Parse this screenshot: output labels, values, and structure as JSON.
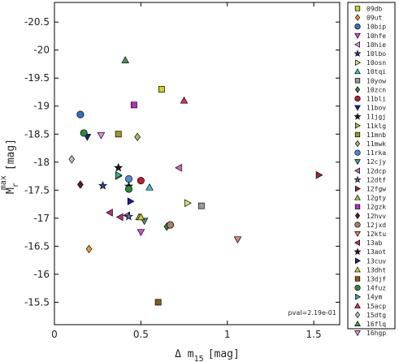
{
  "chart_data": {
    "type": "scatter",
    "xlabel": "Δ m15 [mag]",
    "xlabel_parts": {
      "main": "Δ m",
      "sub": "15",
      "unit": "[mag]"
    },
    "ylabel": "Mr max [mag]",
    "ylabel_parts": {
      "main": "M",
      "sub": "r",
      "sup": "max",
      "unit": "[mag]"
    },
    "xlim": [
      0,
      1.65
    ],
    "ylim": [
      -15.1,
      -20.85
    ],
    "y_inverted": true,
    "x_ticks": [
      0,
      0.5,
      1,
      1.5
    ],
    "x_tick_labels": [
      "0",
      "0.5",
      "1",
      "1.5"
    ],
    "y_ticks": [
      -20.5,
      -20,
      -19.5,
      -19,
      -18.5,
      -18,
      -17.5,
      -17,
      -16.5,
      -16,
      -15.5
    ],
    "y_tick_labels": [
      "-20.5",
      "-20",
      "-19.5",
      "-19",
      "-18.5",
      "-18",
      "-17.5",
      "-17",
      "-16.5",
      "-16",
      "-15.5"
    ],
    "grid": false,
    "legend_position": "right",
    "annotation": "pval=2.19e-01",
    "series": [
      {
        "name": "09db",
        "color": "#c9d41e",
        "marker": "square",
        "points": [
          [
            0.62,
            -19.3
          ]
        ]
      },
      {
        "name": "09ut",
        "color": "#f0a020",
        "marker": "diamond",
        "points": [
          [
            0.2,
            -16.45
          ]
        ]
      },
      {
        "name": "10bip",
        "color": "#2f74c9",
        "marker": "circle",
        "points": [
          [
            0.15,
            -18.85
          ]
        ]
      },
      {
        "name": "10hfe",
        "color": "#e048d8",
        "marker": "tri_down",
        "points": [
          [
            0.5,
            -16.75
          ]
        ]
      },
      {
        "name": "10hie",
        "color": "#f090e0",
        "marker": "tri_left",
        "points": [
          [
            0.42,
            -17.05
          ]
        ]
      },
      {
        "name": "10lbo",
        "color": "#2b3fa3",
        "marker": "star",
        "points": [
          [
            0.28,
            -17.58
          ]
        ]
      },
      {
        "name": "10osn",
        "color": "#dde07a",
        "marker": "tri_right",
        "points": [
          [
            0.77,
            -17.27
          ]
        ]
      },
      {
        "name": "10tqi",
        "color": "#38c7d1",
        "marker": "tri_up",
        "points": [
          [
            0.55,
            -17.55
          ]
        ]
      },
      {
        "name": "10yow",
        "color": "#9a9a9a",
        "marker": "square",
        "points": [
          [
            0.85,
            -17.22
          ]
        ]
      },
      {
        "name": "10zcn",
        "color": "#2f8a3a",
        "marker": "diamond",
        "points": [
          [
            0.65,
            -16.85
          ]
        ]
      },
      {
        "name": "11bli",
        "color": "#c21a3a",
        "marker": "circle",
        "points": [
          [
            0.5,
            -17.67
          ]
        ]
      },
      {
        "name": "11bov",
        "color": "#13269a",
        "marker": "tri_down",
        "points": [
          [
            0.19,
            -18.45
          ]
        ]
      },
      {
        "name": "11jgj",
        "color": "#1a1a1a",
        "marker": "star",
        "points": [
          [
            0.37,
            -17.9
          ]
        ]
      },
      {
        "name": "11klg",
        "color": "#a9c23a",
        "marker": "tri_right",
        "points": [
          [
            0.37,
            -17.75
          ]
        ]
      },
      {
        "name": "11mnb",
        "color": "#9e9a1e",
        "marker": "square",
        "points": [
          [
            0.37,
            -18.5
          ]
        ]
      },
      {
        "name": "11mwk",
        "color": "#b5b570",
        "marker": "diamond",
        "points": [
          [
            0.48,
            -18.45
          ]
        ]
      },
      {
        "name": "11rka",
        "color": "#4a8ed6",
        "marker": "circle",
        "points": [
          [
            0.43,
            -17.7
          ]
        ]
      },
      {
        "name": "12cjy",
        "color": "#4c9a8a",
        "marker": "tri_down",
        "points": [
          [
            0.52,
            -16.95
          ]
        ]
      },
      {
        "name": "12dcp",
        "color": "#d06ab8",
        "marker": "tri_left",
        "points": [
          [
            0.72,
            -17.9
          ]
        ]
      },
      {
        "name": "12dtf",
        "color": "#5a6ab0",
        "marker": "star",
        "points": [
          [
            0.43,
            -17.03
          ]
        ]
      },
      {
        "name": "12fgw",
        "color": "#a02230",
        "marker": "tri_right",
        "points": [
          [
            1.53,
            -17.77
          ]
        ]
      },
      {
        "name": "12gty",
        "color": "#a8c850",
        "marker": "tri_up",
        "points": [
          [
            0.49,
            -17.02
          ]
        ]
      },
      {
        "name": "12gzk",
        "color": "#c42ab8",
        "marker": "square",
        "points": [
          [
            0.46,
            -19.02
          ]
        ]
      },
      {
        "name": "12hvv",
        "color": "#5a1f1a",
        "marker": "diamond",
        "points": [
          [
            0.15,
            -17.6
          ]
        ]
      },
      {
        "name": "12jxd",
        "color": "#a88060",
        "marker": "circle",
        "points": [
          [
            0.67,
            -16.88
          ]
        ]
      },
      {
        "name": "12ktu",
        "color": "#e87878",
        "marker": "tri_down",
        "points": [
          [
            1.06,
            -16.62
          ]
        ]
      },
      {
        "name": "13ab",
        "color": "#c8287a",
        "marker": "tri_left",
        "points": [
          [
            0.32,
            -17.1
          ],
          [
            0.38,
            -17.02
          ]
        ]
      },
      {
        "name": "13aot",
        "color": "#2a1a2a",
        "marker": "star",
        "points": [
          [
            0.43,
            -17.57
          ]
        ]
      },
      {
        "name": "13cuv",
        "color": "#1a1aa8",
        "marker": "tri_right",
        "points": [
          [
            0.44,
            -17.3
          ]
        ]
      },
      {
        "name": "13dht",
        "color": "#d0d030",
        "marker": "tri_up",
        "points": [
          [
            0.5,
            -17.02
          ]
        ]
      },
      {
        "name": "13djf",
        "color": "#8a5a1a",
        "marker": "square",
        "points": [
          [
            0.6,
            -15.5
          ]
        ]
      },
      {
        "name": "14fuz",
        "color": "#2a8a3a",
        "marker": "circle",
        "points": [
          [
            0.17,
            -18.52
          ],
          [
            0.43,
            -17.52
          ]
        ]
      },
      {
        "name": "14ym",
        "color": "#30b888",
        "marker": "tri_right",
        "points": [
          [
            0.37,
            -17.77
          ]
        ]
      },
      {
        "name": "15acp",
        "color": "#e02a68",
        "marker": "tri_up",
        "points": [
          [
            0.75,
            -19.1
          ]
        ]
      },
      {
        "name": "15dtg",
        "color": "#c0c0c0",
        "marker": "diamond",
        "points": [
          [
            0.1,
            -18.05
          ]
        ]
      },
      {
        "name": "16flq",
        "color": "#3aa050",
        "marker": "tri_up",
        "points": [
          [
            0.41,
            -19.82
          ]
        ]
      },
      {
        "name": "16hgp",
        "color": "#e88ae8",
        "marker": "tri_down",
        "points": [
          [
            0.27,
            -18.48
          ]
        ]
      }
    ]
  }
}
